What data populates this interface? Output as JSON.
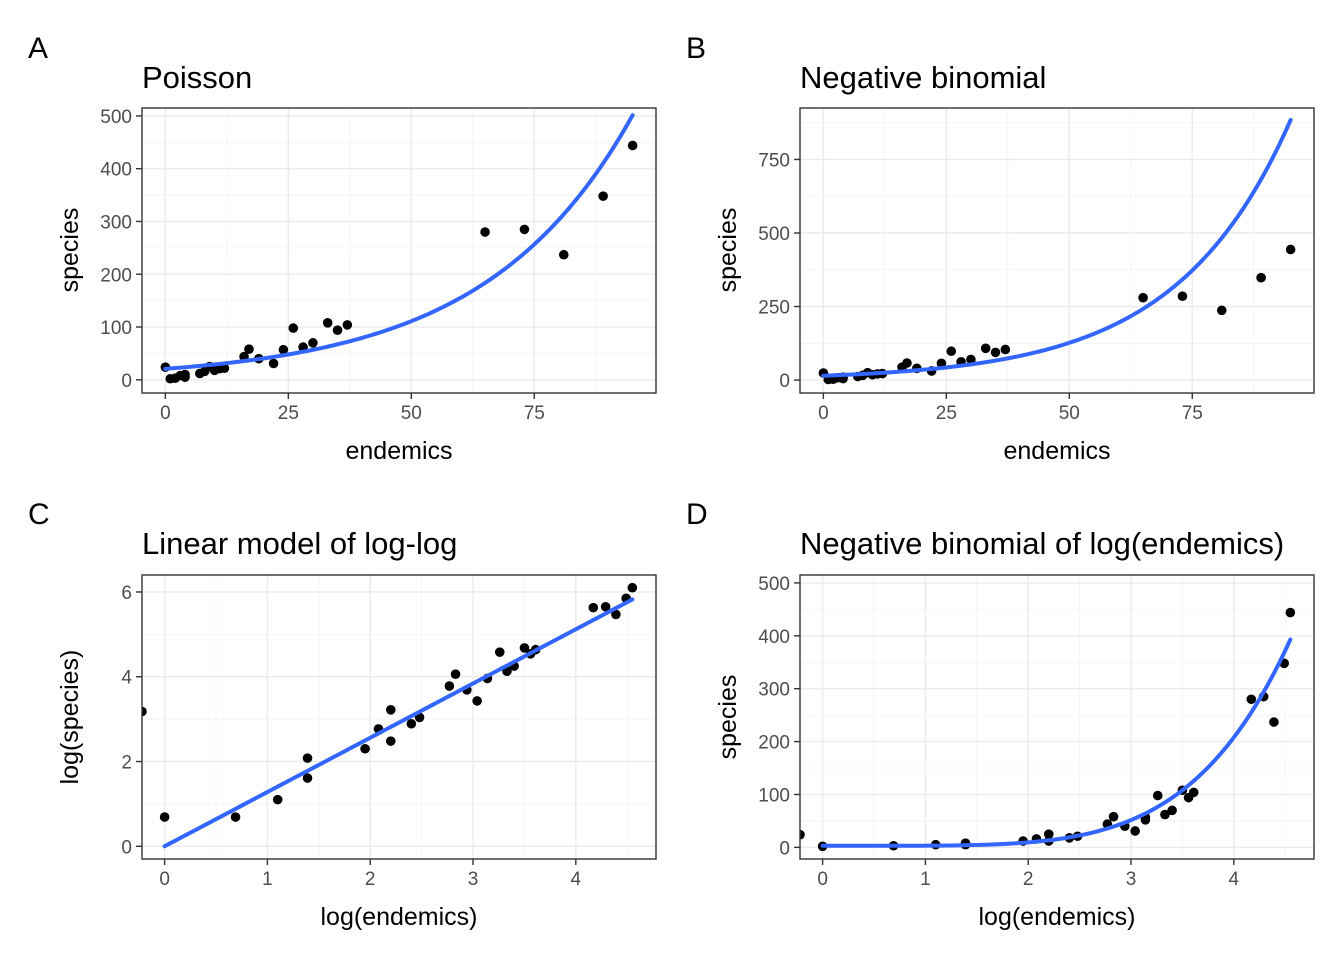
{
  "colors": {
    "point": "#000000",
    "fit_line": "#3366FF"
  },
  "chart_data": [
    {
      "tag": "A",
      "type": "scatter",
      "title": "Poisson",
      "xlabel": "endemics",
      "ylabel": "species",
      "xlim": [
        -4.75,
        99.75
      ],
      "ylim": [
        -25,
        515
      ],
      "xticks": [
        0,
        25,
        50,
        75
      ],
      "xtick_labels": [
        "0",
        "25",
        "50",
        "75"
      ],
      "yticks": [
        0,
        100,
        200,
        300,
        400,
        500
      ],
      "ytick_labels": [
        "0",
        "100",
        "200",
        "300",
        "400",
        "500"
      ],
      "grid": true,
      "points": [
        [
          0,
          24
        ],
        [
          1,
          2
        ],
        [
          2,
          3
        ],
        [
          3,
          8
        ],
        [
          4,
          5
        ],
        [
          4,
          10
        ],
        [
          7,
          12
        ],
        [
          8,
          16
        ],
        [
          9,
          25
        ],
        [
          10,
          18
        ],
        [
          11,
          21
        ],
        [
          12,
          22
        ],
        [
          16,
          44
        ],
        [
          17,
          58
        ],
        [
          19,
          40
        ],
        [
          22,
          31
        ],
        [
          24,
          57
        ],
        [
          26,
          98
        ],
        [
          28,
          62
        ],
        [
          30,
          70
        ],
        [
          33,
          108
        ],
        [
          35,
          94
        ],
        [
          37,
          104
        ],
        [
          65,
          280
        ],
        [
          73,
          285
        ],
        [
          81,
          237
        ],
        [
          89,
          348
        ],
        [
          95,
          444
        ]
      ],
      "fit": {
        "model": "exp",
        "a": 20.8,
        "b": 0.0335,
        "x_from": 0,
        "x_to": 95
      }
    },
    {
      "tag": "B",
      "type": "scatter",
      "title": "Negative binomial",
      "xlabel": "endemics",
      "ylabel": "species",
      "xlim": [
        -4.75,
        99.75
      ],
      "ylim": [
        -44,
        925
      ],
      "xticks": [
        0,
        25,
        50,
        75
      ],
      "xtick_labels": [
        "0",
        "25",
        "50",
        "75"
      ],
      "yticks": [
        0,
        250,
        500,
        750
      ],
      "ytick_labels": [
        "0",
        "250",
        "500",
        "750"
      ],
      "grid": true,
      "points": [
        [
          0,
          24
        ],
        [
          1,
          2
        ],
        [
          2,
          3
        ],
        [
          3,
          8
        ],
        [
          4,
          5
        ],
        [
          4,
          10
        ],
        [
          7,
          12
        ],
        [
          8,
          16
        ],
        [
          9,
          25
        ],
        [
          10,
          18
        ],
        [
          11,
          21
        ],
        [
          12,
          22
        ],
        [
          16,
          44
        ],
        [
          17,
          58
        ],
        [
          19,
          40
        ],
        [
          22,
          31
        ],
        [
          24,
          57
        ],
        [
          26,
          98
        ],
        [
          28,
          62
        ],
        [
          30,
          70
        ],
        [
          33,
          108
        ],
        [
          35,
          94
        ],
        [
          37,
          104
        ],
        [
          65,
          280
        ],
        [
          73,
          285
        ],
        [
          81,
          237
        ],
        [
          89,
          348
        ],
        [
          95,
          444
        ]
      ],
      "fit": {
        "model": "exp",
        "a": 14.6,
        "b": 0.0432,
        "x_from": 0,
        "x_to": 95
      }
    },
    {
      "tag": "C",
      "type": "scatter",
      "title": "Linear model of log-log",
      "xlabel": "log(endemics)",
      "ylabel": "log(species)",
      "xlim": [
        -0.22,
        4.78
      ],
      "ylim": [
        -0.3,
        6.4
      ],
      "xticks": [
        0,
        1,
        2,
        3,
        4
      ],
      "xtick_labels": [
        "0",
        "1",
        "2",
        "3",
        "4"
      ],
      "yticks": [
        0,
        2,
        4,
        6
      ],
      "ytick_labels": [
        "0",
        "2",
        "4",
        "6"
      ],
      "grid": true,
      "points": [
        [
          -0.22,
          3.18
        ],
        [
          0,
          0.69
        ],
        [
          0.69,
          0.69
        ],
        [
          1.1,
          1.1
        ],
        [
          1.39,
          1.61
        ],
        [
          1.39,
          2.08
        ],
        [
          1.95,
          2.3
        ],
        [
          2.08,
          2.77
        ],
        [
          2.2,
          2.48
        ],
        [
          2.2,
          3.22
        ],
        [
          2.4,
          2.89
        ],
        [
          2.48,
          3.04
        ],
        [
          2.77,
          3.78
        ],
        [
          2.83,
          4.06
        ],
        [
          2.94,
          3.69
        ],
        [
          3.04,
          3.43
        ],
        [
          3.14,
          3.96
        ],
        [
          3.26,
          4.58
        ],
        [
          3.33,
          4.13
        ],
        [
          3.4,
          4.25
        ],
        [
          3.5,
          4.68
        ],
        [
          3.56,
          4.54
        ],
        [
          3.61,
          4.64
        ],
        [
          4.17,
          5.63
        ],
        [
          4.29,
          5.65
        ],
        [
          4.39,
          5.47
        ],
        [
          4.49,
          5.85
        ],
        [
          4.55,
          6.1
        ]
      ],
      "fit": {
        "model": "linear",
        "a": 0.0,
        "b": 1.28,
        "x_from": 0,
        "x_to": 4.55
      }
    },
    {
      "tag": "D",
      "type": "scatter",
      "title": "Negative binomial of log(endemics)",
      "xlabel": "log(endemics)",
      "ylabel": "species",
      "xlim": [
        -0.22,
        4.78
      ],
      "ylim": [
        -22,
        515
      ],
      "xticks": [
        0,
        1,
        2,
        3,
        4
      ],
      "xtick_labels": [
        "0",
        "1",
        "2",
        "3",
        "4"
      ],
      "yticks": [
        0,
        100,
        200,
        300,
        400,
        500
      ],
      "ytick_labels": [
        "0",
        "100",
        "200",
        "300",
        "400",
        "500"
      ],
      "grid": true,
      "points": [
        [
          -0.22,
          24
        ],
        [
          0,
          2
        ],
        [
          0.69,
          3
        ],
        [
          1.1,
          5
        ],
        [
          1.39,
          5
        ],
        [
          1.39,
          8
        ],
        [
          1.95,
          12
        ],
        [
          2.08,
          16
        ],
        [
          2.2,
          12
        ],
        [
          2.2,
          25
        ],
        [
          2.4,
          18
        ],
        [
          2.48,
          21
        ],
        [
          2.77,
          44
        ],
        [
          2.83,
          58
        ],
        [
          2.94,
          40
        ],
        [
          3.04,
          31
        ],
        [
          3.14,
          52
        ],
        [
          3.14,
          57
        ],
        [
          3.26,
          98
        ],
        [
          3.33,
          62
        ],
        [
          3.4,
          70
        ],
        [
          3.5,
          108
        ],
        [
          3.56,
          94
        ],
        [
          3.61,
          104
        ],
        [
          4.17,
          280
        ],
        [
          4.29,
          285
        ],
        [
          4.39,
          237
        ],
        [
          4.49,
          348
        ],
        [
          4.55,
          444
        ]
      ],
      "fit": {
        "model": "power",
        "a": 0.2,
        "b": 5.0,
        "c": 3,
        "x_from": 0,
        "x_to": 4.55
      }
    }
  ]
}
